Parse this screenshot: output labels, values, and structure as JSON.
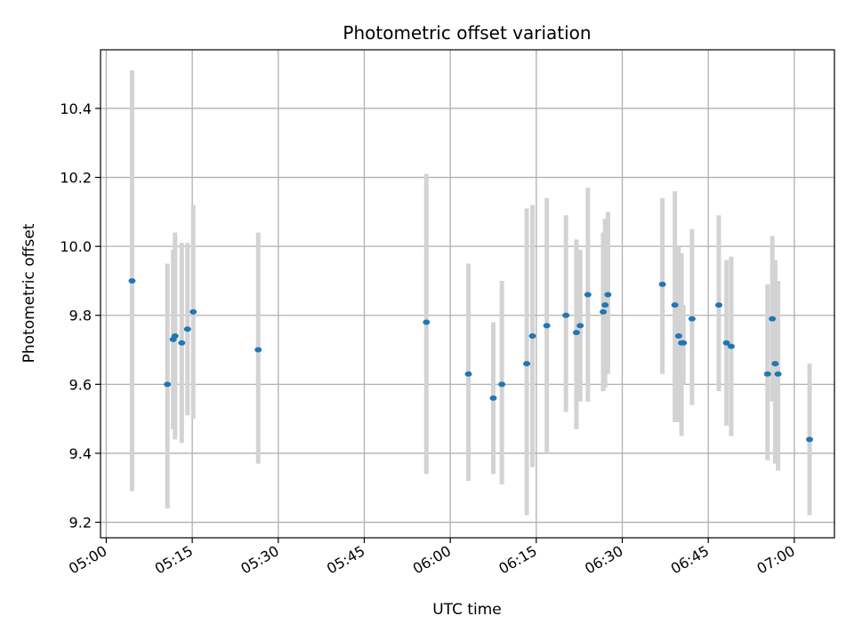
{
  "chart_data": {
    "type": "scatter",
    "title": "Photometric offset variation",
    "xlabel": "UTC time",
    "ylabel": "Photometric offset",
    "grid": true,
    "xlim": [
      "04:59",
      "07:07"
    ],
    "ylim": [
      9.155,
      10.57
    ],
    "x_ticks": [
      "05:00",
      "05:15",
      "05:30",
      "05:45",
      "06:00",
      "06:15",
      "06:30",
      "06:45",
      "07:00"
    ],
    "y_ticks": [
      9.2,
      9.4,
      9.6,
      9.8,
      10.0,
      10.2,
      10.4
    ],
    "colors": {
      "points": "#1f77b4",
      "error_bars": "#d3d3d3",
      "grid": "#b0b0b0"
    },
    "points": [
      {
        "time": "05:04:30",
        "y": 9.9,
        "lo": 9.29,
        "hi": 10.51
      },
      {
        "time": "05:10:40",
        "y": 9.6,
        "lo": 9.24,
        "hi": 9.95
      },
      {
        "time": "05:11:40",
        "y": 9.73,
        "lo": 9.47,
        "hi": 9.99
      },
      {
        "time": "05:12:00",
        "y": 9.74,
        "lo": 9.44,
        "hi": 10.04
      },
      {
        "time": "05:13:10",
        "y": 9.72,
        "lo": 9.43,
        "hi": 10.01
      },
      {
        "time": "05:14:10",
        "y": 9.76,
        "lo": 9.51,
        "hi": 10.01
      },
      {
        "time": "05:15:10",
        "y": 9.81,
        "lo": 9.5,
        "hi": 10.12
      },
      {
        "time": "05:26:30",
        "y": 9.7,
        "lo": 9.37,
        "hi": 10.04
      },
      {
        "time": "05:55:50",
        "y": 9.78,
        "lo": 9.34,
        "hi": 10.21
      },
      {
        "time": "06:03:10",
        "y": 9.63,
        "lo": 9.32,
        "hi": 9.95
      },
      {
        "time": "06:07:30",
        "y": 9.56,
        "lo": 9.34,
        "hi": 9.78
      },
      {
        "time": "06:09:00",
        "y": 9.6,
        "lo": 9.31,
        "hi": 9.9
      },
      {
        "time": "06:13:20",
        "y": 9.66,
        "lo": 9.22,
        "hi": 10.11
      },
      {
        "time": "06:14:20",
        "y": 9.74,
        "lo": 9.36,
        "hi": 10.12
      },
      {
        "time": "06:16:50",
        "y": 9.77,
        "lo": 9.4,
        "hi": 10.14
      },
      {
        "time": "06:20:10",
        "y": 9.8,
        "lo": 9.52,
        "hi": 10.09
      },
      {
        "time": "06:22:00",
        "y": 9.75,
        "lo": 9.47,
        "hi": 10.02
      },
      {
        "time": "06:22:40",
        "y": 9.77,
        "lo": 9.55,
        "hi": 9.99
      },
      {
        "time": "06:24:00",
        "y": 9.86,
        "lo": 9.55,
        "hi": 10.17
      },
      {
        "time": "06:26:40",
        "y": 9.81,
        "lo": 9.58,
        "hi": 10.04
      },
      {
        "time": "06:27:00",
        "y": 9.83,
        "lo": 9.59,
        "hi": 10.08
      },
      {
        "time": "06:27:30",
        "y": 9.86,
        "lo": 9.63,
        "hi": 10.1
      },
      {
        "time": "06:37:00",
        "y": 9.89,
        "lo": 9.63,
        "hi": 10.14
      },
      {
        "time": "06:39:10",
        "y": 9.83,
        "lo": 9.49,
        "hi": 10.16
      },
      {
        "time": "06:39:50",
        "y": 9.74,
        "lo": 9.49,
        "hi": 10.0
      },
      {
        "time": "06:40:20",
        "y": 9.72,
        "lo": 9.45,
        "hi": 9.98
      },
      {
        "time": "06:40:40",
        "y": 9.72,
        "lo": 9.6,
        "hi": 9.83
      },
      {
        "time": "06:42:10",
        "y": 9.79,
        "lo": 9.54,
        "hi": 10.05
      },
      {
        "time": "06:46:50",
        "y": 9.83,
        "lo": 9.58,
        "hi": 10.09
      },
      {
        "time": "06:48:10",
        "y": 9.72,
        "lo": 9.48,
        "hi": 9.96
      },
      {
        "time": "06:49:00",
        "y": 9.71,
        "lo": 9.45,
        "hi": 9.97
      },
      {
        "time": "06:55:20",
        "y": 9.63,
        "lo": 9.38,
        "hi": 9.89
      },
      {
        "time": "06:56:10",
        "y": 9.79,
        "lo": 9.55,
        "hi": 10.03
      },
      {
        "time": "06:56:40",
        "y": 9.66,
        "lo": 9.37,
        "hi": 9.96
      },
      {
        "time": "06:57:10",
        "y": 9.63,
        "lo": 9.35,
        "hi": 9.9
      },
      {
        "time": "07:02:40",
        "y": 9.44,
        "lo": 9.22,
        "hi": 9.66
      }
    ]
  }
}
